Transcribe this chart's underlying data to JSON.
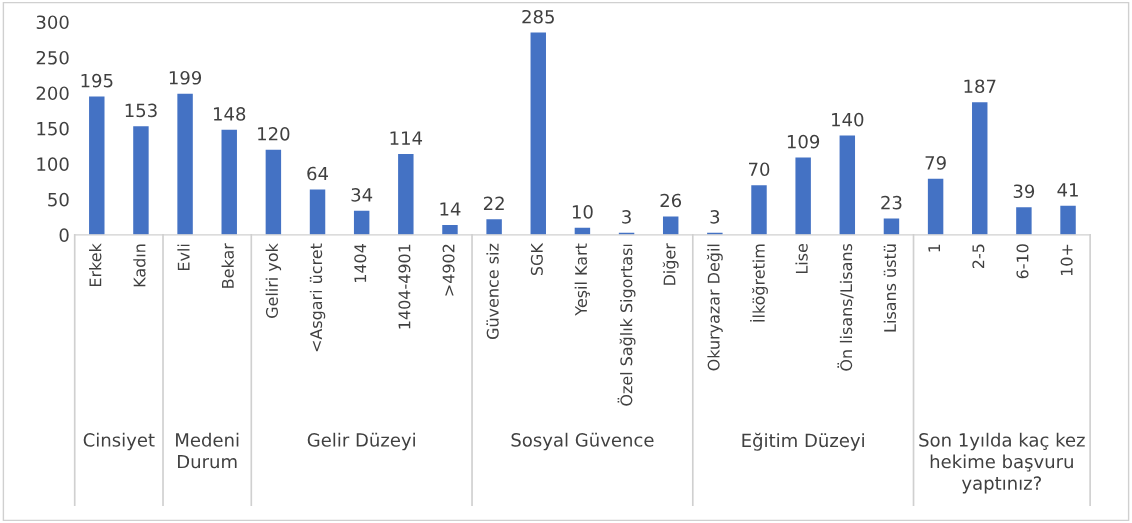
{
  "chart_data": {
    "type": "bar",
    "categories": [
      "Erkek",
      "Kadın",
      "Evli",
      "Bekar",
      "Geliri yok",
      "<Asgari ücret",
      "1404",
      "1404-4901",
      ">4902",
      "Güvence siz",
      "SGK",
      "Yeşil Kart",
      "Özel Sağlık Sigortası",
      "Diğer",
      "Okuryazar Değil",
      "İlköğretim",
      "Lise",
      "Ön lisans/Lisans",
      "Lisans üstü",
      "1",
      "2-5",
      "6-10",
      "10+"
    ],
    "values": [
      195,
      153,
      199,
      148,
      120,
      64,
      34,
      114,
      14,
      22,
      285,
      10,
      3,
      26,
      3,
      70,
      109,
      140,
      23,
      79,
      187,
      39,
      41
    ],
    "color": "#4472c4",
    "ylim": [
      0,
      300
    ],
    "yticks": [
      0,
      50,
      100,
      150,
      200,
      250,
      300
    ],
    "grid": false,
    "data_labels": true,
    "annotations": [
      "Cinsiyet",
      "Medeni\nDurum",
      "Gelir Düzeyi",
      "Sosyal Güvence",
      "Eğitim Düzeyi",
      "Son 1yılda kaç kez\nhekime başvuru\nyaptınız?"
    ]
  }
}
